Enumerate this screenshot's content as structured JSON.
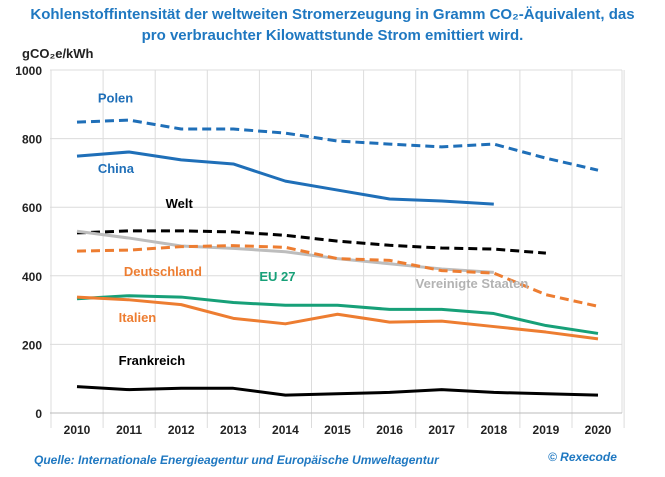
{
  "title_line1": "Kohlenstoffintensität der weltweiten Stromerzeugung in Gramm CO₂-Äquivalent, das",
  "title_line2": "pro verbrauchter Kilowattstunde Strom emittiert wird.",
  "source": "Quelle: Internationale Energieagentur und Europäische Umweltagentur",
  "copyright": "© Rexecode",
  "chart_data": {
    "type": "line",
    "ylabel": "gCO₂e/kWh",
    "ylim": [
      0,
      1000
    ],
    "yticks": [
      "0",
      "200",
      "400",
      "600",
      "800",
      "1000"
    ],
    "x": [
      "2010",
      "2011",
      "2012",
      "2013",
      "2014",
      "2015",
      "2016",
      "2017",
      "2018",
      "2019",
      "2020"
    ],
    "grid": true,
    "series": [
      {
        "name": "Polen",
        "color": "#1f6fb8",
        "dash": true,
        "values": [
          848,
          854,
          828,
          828,
          816,
          793,
          784,
          776,
          784,
          743,
          708
        ]
      },
      {
        "name": "China",
        "color": "#1f6fb8",
        "dash": false,
        "values": [
          749,
          761,
          738,
          726,
          676,
          650,
          624,
          618,
          609,
          null,
          null
        ]
      },
      {
        "name": "Welt",
        "color": "#000000",
        "dash": true,
        "values": [
          525,
          531,
          531,
          528,
          518,
          501,
          489,
          481,
          478,
          466,
          null
        ]
      },
      {
        "name": "Vereinigte Staaten",
        "color": "#bdbdbd",
        "dash": false,
        "values": [
          530,
          510,
          487,
          480,
          470,
          450,
          435,
          420,
          410,
          null,
          null
        ]
      },
      {
        "name": "Deutschland",
        "color": "#ed7d31",
        "dash": true,
        "values": [
          472,
          475,
          485,
          488,
          483,
          450,
          445,
          415,
          408,
          345,
          311
        ]
      },
      {
        "name": "EU 27",
        "color": "#17a078",
        "dash": false,
        "values": [
          333,
          342,
          338,
          322,
          314,
          314,
          302,
          302,
          290,
          255,
          232
        ]
      },
      {
        "name": "Italien",
        "color": "#ed7d31",
        "dash": false,
        "values": [
          338,
          330,
          316,
          276,
          260,
          288,
          265,
          268,
          252,
          236,
          216
        ]
      },
      {
        "name": "Frankreich",
        "color": "#000000",
        "dash": false,
        "values": [
          77,
          68,
          72,
          72,
          52,
          56,
          60,
          68,
          60,
          56,
          52
        ]
      }
    ],
    "labels": [
      {
        "text": "Polen",
        "color": "#1f6fb8",
        "at": [
          2010.4,
          905
        ]
      },
      {
        "text": "China",
        "color": "#1f6fb8",
        "at": [
          2010.4,
          700
        ]
      },
      {
        "text": "Welt",
        "color": "#000000",
        "at": [
          2011.7,
          597
        ]
      },
      {
        "text": "Deutschland",
        "color": "#ed7d31",
        "at": [
          2010.9,
          400
        ]
      },
      {
        "text": "EU 27",
        "color": "#17a078",
        "at": [
          2013.5,
          385
        ]
      },
      {
        "text": "Vereinigte Staaten",
        "color": "#b3b3b3",
        "at": [
          2016.5,
          365
        ]
      },
      {
        "text": "Italien",
        "color": "#ed7d31",
        "at": [
          2010.8,
          265
        ]
      },
      {
        "text": "Frankreich",
        "color": "#000000",
        "at": [
          2010.8,
          140
        ]
      }
    ]
  }
}
